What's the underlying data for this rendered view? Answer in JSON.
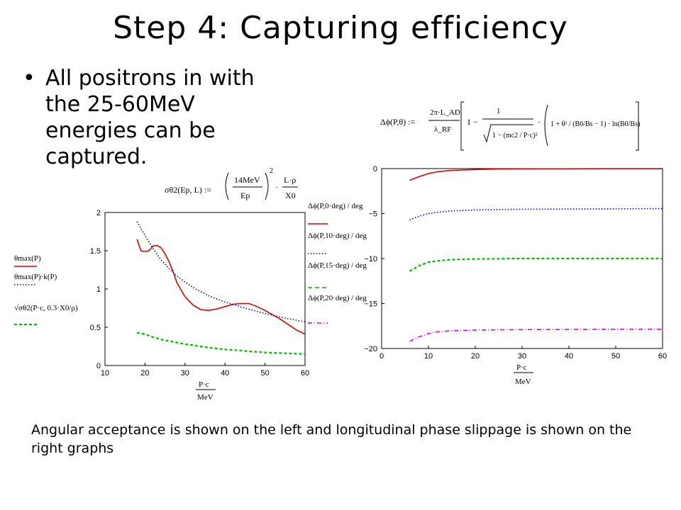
{
  "slide": {
    "title": "Step 4: Capturing efficiency",
    "bullet": "All positrons in with the 25-60MeV energies can be captured.",
    "caption": "Angular acceptance is shown on the left and longitudinal phase slippage is shown on the right graphs"
  },
  "formulas": {
    "sigma_lhs": "σθ2(Ep, L) :=",
    "sigma_num": "14MeV",
    "sigma_den": "Ep",
    "sigma_exp": "2",
    "sigma_frac_num": "L·ρ",
    "sigma_frac_den": "X0",
    "phase_lhs": "Δϕ(P,θ) :=",
    "phase_k_num": "2π·L_AD",
    "phase_k_den": "λ_RF",
    "phase_one": "1 −",
    "phase_inner_num": "1",
    "phase_sqrt": "1 − (mc2 / P·c)²",
    "phase_bracket": "1 + θ² / (B0/Bs − 1) · ln(B0/Bs)"
  },
  "left_legend": [
    "θmax(P)",
    "θmax(P)·k(P)",
    "√σθ2(P·c, 0.3·X0/ρ)"
  ],
  "right_legend": [
    "Δϕ(P,0·deg) / deg",
    "Δϕ(P,10·deg) / deg",
    "Δϕ(P,15·deg) / deg",
    "Δϕ(P,20·deg) / deg"
  ],
  "x_axis_label": {
    "num": "P·c",
    "den": "MeV"
  },
  "chart_data": [
    {
      "type": "line",
      "name": "angular acceptance",
      "xlim": [
        10,
        60
      ],
      "ylim": [
        0,
        2
      ],
      "xticks": [
        10,
        20,
        30,
        40,
        50,
        60
      ],
      "yticks": [
        0,
        0.5,
        1,
        1.5,
        2
      ],
      "xlabel": "P·c / MeV",
      "series": [
        {
          "name": "θmax(P)",
          "color": "#dd0000",
          "dash": "solid",
          "x": [
            18,
            19,
            20,
            21,
            22,
            23,
            24,
            25,
            26,
            27,
            28,
            30,
            32,
            34,
            36,
            38,
            40,
            42,
            44,
            46,
            48,
            50,
            52,
            54,
            56,
            58,
            60
          ],
          "y": [
            1.65,
            1.5,
            1.49,
            1.5,
            1.56,
            1.57,
            1.54,
            1.46,
            1.36,
            1.23,
            1.08,
            0.9,
            0.79,
            0.73,
            0.72,
            0.74,
            0.77,
            0.8,
            0.81,
            0.81,
            0.77,
            0.72,
            0.66,
            0.6,
            0.53,
            0.46,
            0.41
          ]
        },
        {
          "name": "θmax(P)·k(P)",
          "color": "#0000aa",
          "dash": "dotted",
          "x": [
            18,
            20,
            22,
            24,
            26,
            28,
            30,
            33,
            36,
            40,
            45,
            50,
            55,
            60
          ],
          "y": [
            1.88,
            1.7,
            1.53,
            1.38,
            1.27,
            1.17,
            1.09,
            0.99,
            0.91,
            0.83,
            0.75,
            0.68,
            0.62,
            0.57
          ]
        },
        {
          "name": "√σθ2(P·c, 0.3·X0/ρ)",
          "color": "#00bb00",
          "dash": "dashed",
          "x": [
            18,
            20,
            22,
            24,
            26,
            28,
            30,
            35,
            40,
            45,
            50,
            55,
            60
          ],
          "y": [
            0.43,
            0.41,
            0.37,
            0.34,
            0.32,
            0.3,
            0.28,
            0.24,
            0.21,
            0.19,
            0.17,
            0.16,
            0.15
          ]
        }
      ]
    },
    {
      "type": "line",
      "name": "longitudinal phase slippage",
      "xlim": [
        0,
        60
      ],
      "ylim": [
        -20,
        0
      ],
      "xticks": [
        0,
        10,
        20,
        30,
        40,
        50,
        60
      ],
      "yticks": [
        0,
        -5,
        -10,
        -15,
        -20
      ],
      "xlabel": "P·c / MeV",
      "series": [
        {
          "name": "Δϕ(P,0·deg)/deg",
          "color": "#dd0000",
          "dash": "solid",
          "x": [
            6,
            8,
            10,
            12,
            15,
            20,
            25,
            30,
            40,
            50,
            60
          ],
          "y": [
            -1.3,
            -0.9,
            -0.55,
            -0.35,
            -0.2,
            -0.1,
            -0.05,
            -0.03,
            -0.02,
            -0.01,
            -0.01
          ]
        },
        {
          "name": "Δϕ(P,10·deg)/deg",
          "color": "#0000aa",
          "dash": "dotted",
          "x": [
            6,
            8,
            10,
            12,
            15,
            20,
            25,
            30,
            40,
            50,
            60
          ],
          "y": [
            -5.7,
            -5.3,
            -5.0,
            -4.85,
            -4.7,
            -4.6,
            -4.55,
            -4.52,
            -4.5,
            -4.48,
            -4.45
          ]
        },
        {
          "name": "Δϕ(P,15·deg)/deg",
          "color": "#00bb00",
          "dash": "dashed",
          "x": [
            6,
            8,
            10,
            12,
            15,
            20,
            25,
            30,
            40,
            50,
            60
          ],
          "y": [
            -11.4,
            -10.8,
            -10.4,
            -10.25,
            -10.12,
            -10.05,
            -10.02,
            -10.0,
            -10.0,
            -10.0,
            -10.0
          ]
        },
        {
          "name": "Δϕ(P,20·deg)/deg",
          "color": "#dd00dd",
          "dash": "dashdot",
          "x": [
            6,
            8,
            10,
            12,
            15,
            20,
            25,
            30,
            40,
            50,
            60
          ],
          "y": [
            -19.2,
            -18.7,
            -18.35,
            -18.15,
            -18.02,
            -17.95,
            -17.92,
            -17.9,
            -17.88,
            -17.87,
            -17.86
          ]
        }
      ]
    }
  ]
}
